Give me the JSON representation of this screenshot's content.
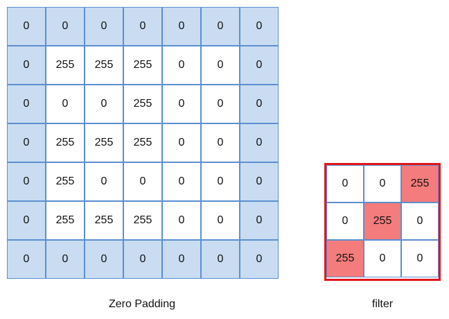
{
  "padding_caption": "Zero Padding",
  "filter_caption": "filter",
  "padded_matrix": [
    [
      "0",
      "0",
      "0",
      "0",
      "0",
      "0",
      "0"
    ],
    [
      "0",
      "255",
      "255",
      "255",
      "0",
      "0",
      "0"
    ],
    [
      "0",
      "0",
      "0",
      "255",
      "0",
      "0",
      "0"
    ],
    [
      "0",
      "255",
      "255",
      "255",
      "0",
      "0",
      "0"
    ],
    [
      "0",
      "255",
      "0",
      "0",
      "0",
      "0",
      "0"
    ],
    [
      "0",
      "255",
      "255",
      "255",
      "0",
      "0",
      "0"
    ],
    [
      "0",
      "0",
      "0",
      "0",
      "0",
      "0",
      "0"
    ]
  ],
  "filter_matrix": [
    [
      "0",
      "0",
      "255"
    ],
    [
      "0",
      "255",
      "0"
    ],
    [
      "255",
      "0",
      "0"
    ]
  ],
  "colors": {
    "padding_fill": "#c9dcf1",
    "grid_border": "#5b8fd0",
    "filter_border": "#e3151b",
    "filter_highlight": "#f47c7c"
  }
}
